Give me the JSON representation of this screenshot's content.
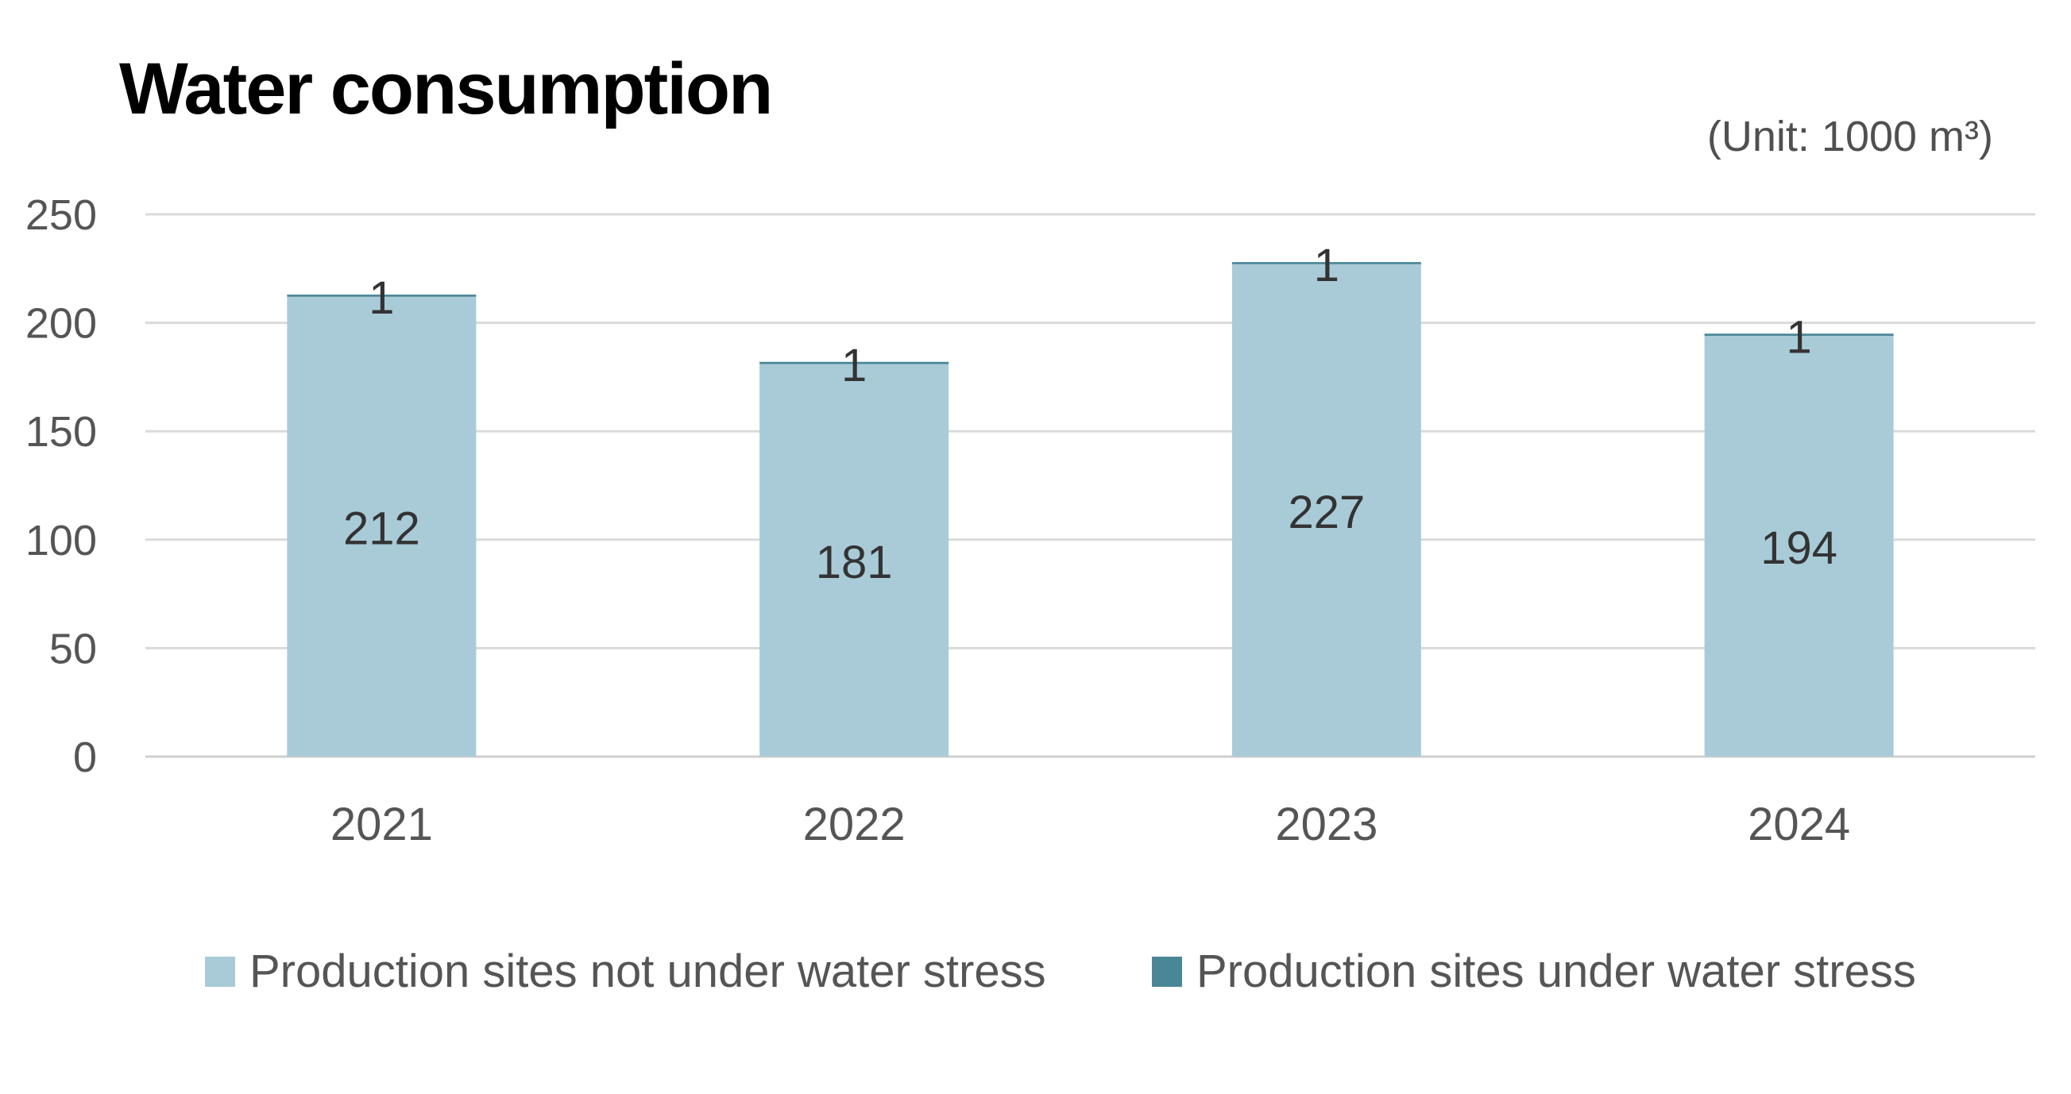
{
  "chart_data": {
    "type": "bar",
    "stacked": true,
    "title": "Water consumption",
    "unit_label": "(Unit: 1000 m³)",
    "categories": [
      "2021",
      "2022",
      "2023",
      "2024"
    ],
    "series": [
      {
        "name": "Production sites not under water stress",
        "values": [
          212,
          181,
          227,
          194
        ],
        "color": "#A9CBD8"
      },
      {
        "name": "Production sites under water stress",
        "values": [
          1,
          1,
          1,
          1
        ],
        "color": "#4A8796"
      }
    ],
    "ylim": [
      0,
      250
    ],
    "yticks": [
      0,
      50,
      100,
      150,
      200,
      250
    ],
    "grid": true,
    "legend_position": "bottom",
    "xlabel": "",
    "ylabel": ""
  }
}
